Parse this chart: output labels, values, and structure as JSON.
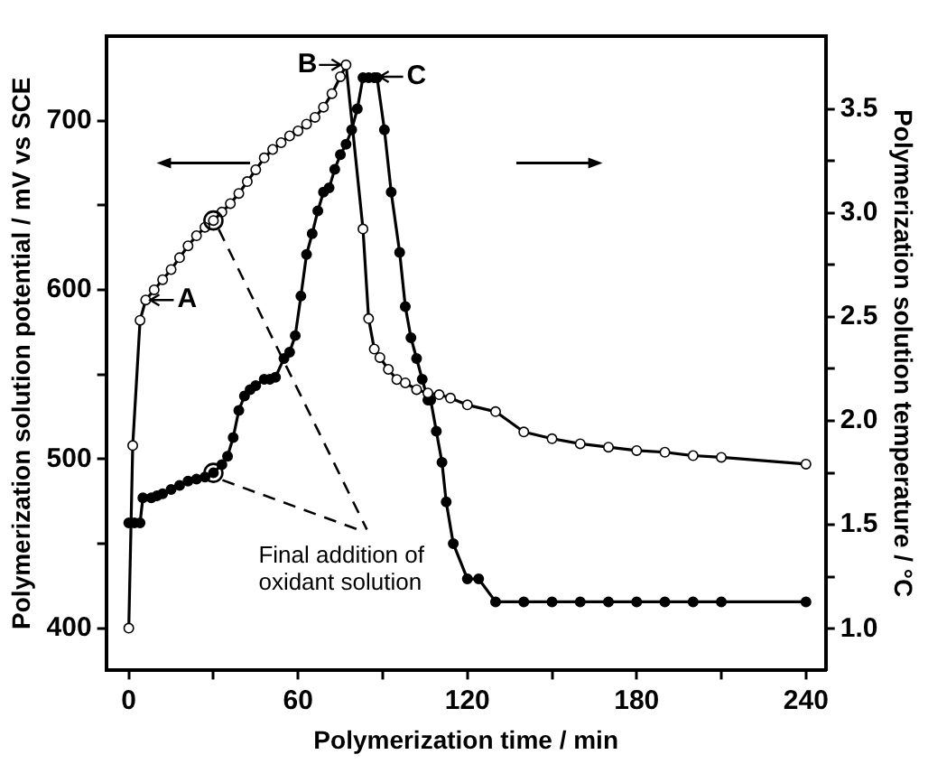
{
  "chart_data": {
    "type": "line",
    "xlabel": "Polymerization time / min",
    "ylabel": "Polymerization solution potential / mV vs SCE",
    "y2label": "Polymerization solution temperature / °C",
    "xlim": [
      -8,
      247
    ],
    "xticks": [
      0,
      {
        "value": 30,
        "label": null
      },
      60,
      {
        "value": 90,
        "label": null
      },
      120,
      {
        "value": 150,
        "label": null
      },
      180,
      {
        "value": 210,
        "label": null
      },
      240
    ],
    "ylim": [
      375,
      750
    ],
    "yticks": [
      400,
      {
        "value": 450,
        "label": null
      },
      500,
      {
        "value": 550,
        "label": null
      },
      600,
      {
        "value": 650,
        "label": null
      },
      700
    ],
    "y2lim": [
      0.8,
      3.85
    ],
    "y2ticks": [
      {
        "value": 1.0,
        "label": "1.0"
      },
      {
        "value": 1.25,
        "label": null
      },
      1.5,
      {
        "value": 1.75,
        "label": null
      },
      {
        "value": 2.0,
        "label": "2.0"
      },
      {
        "value": 2.25,
        "label": null
      },
      2.5,
      {
        "value": 2.75,
        "label": null
      },
      {
        "value": 3.0,
        "label": "3.0"
      },
      {
        "value": 3.25,
        "label": null
      },
      3.5
    ],
    "grid": false,
    "legend": false,
    "marker": "circle",
    "line_style": "solid",
    "series": [
      {
        "color": "#000000",
        "axis": "y",
        "x": [
          0,
          1.4,
          4,
          6,
          9,
          12,
          15,
          18,
          21,
          24,
          27,
          30,
          33,
          36,
          39,
          42,
          45,
          48,
          51,
          54,
          57,
          60,
          63,
          66,
          69,
          72,
          75,
          77,
          83,
          85,
          87,
          89,
          92,
          95,
          98,
          102,
          106,
          110,
          114,
          120,
          130,
          140,
          150,
          160,
          170,
          180,
          190,
          200,
          210,
          240
        ],
        "values": [
          400,
          508,
          582,
          594,
          600,
          606,
          612,
          619,
          626,
          632,
          637,
          641,
          646,
          651,
          657,
          664,
          671,
          678,
          683,
          687,
          691,
          694,
          698,
          702,
          708,
          716,
          726,
          733,
          636,
          583,
          565,
          560,
          553,
          547,
          545,
          541,
          539,
          538,
          536,
          532,
          528,
          516,
          512,
          509,
          507,
          505,
          504,
          502,
          501,
          497
        ]
      },
      {
        "color": "#000000",
        "axis": "y2",
        "x": [
          0,
          2,
          4,
          5,
          8,
          10,
          12,
          15,
          18,
          21,
          24,
          27,
          30,
          33,
          35,
          37,
          39,
          41,
          43,
          45,
          48,
          50,
          52,
          55,
          57,
          59,
          61,
          63,
          65,
          67,
          69,
          71,
          73,
          75,
          77,
          79,
          81,
          83,
          85,
          87,
          88,
          90.6,
          93,
          96,
          98,
          100,
          102,
          104,
          106,
          107,
          109,
          111,
          112.5,
          115,
          120,
          124,
          130,
          140,
          150,
          160,
          170,
          180,
          190,
          200,
          210,
          240
        ],
        "values": [
          1.51,
          1.51,
          1.51,
          1.63,
          1.63,
          1.64,
          1.65,
          1.67,
          1.69,
          1.71,
          1.72,
          1.73,
          1.75,
          1.79,
          1.83,
          1.92,
          2.05,
          2.12,
          2.15,
          2.17,
          2.2,
          2.2,
          2.21,
          2.3,
          2.33,
          2.41,
          2.6,
          2.8,
          2.9,
          3.01,
          3.1,
          3.12,
          3.21,
          3.28,
          3.33,
          3.4,
          3.5,
          3.65,
          3.65,
          3.65,
          3.65,
          3.4,
          3.1,
          2.81,
          2.55,
          2.4,
          2.3,
          2.2,
          2.1,
          2.1,
          1.95,
          1.8,
          1.61,
          1.41,
          1.24,
          1.24,
          1.13,
          1.13,
          1.13,
          1.13,
          1.13,
          1.13,
          1.13,
          1.13,
          1.13,
          1.13
        ]
      }
    ],
    "annotations": [
      {
        "text": "A",
        "x": 5.7,
        "y": 594
      },
      {
        "text": "B",
        "x": 77,
        "y": 733
      },
      {
        "text": "C",
        "x": 87,
        "y": 726
      },
      {
        "text": "Final addition of oxidant solution",
        "x": 30,
        "y": 641
      }
    ]
  }
}
